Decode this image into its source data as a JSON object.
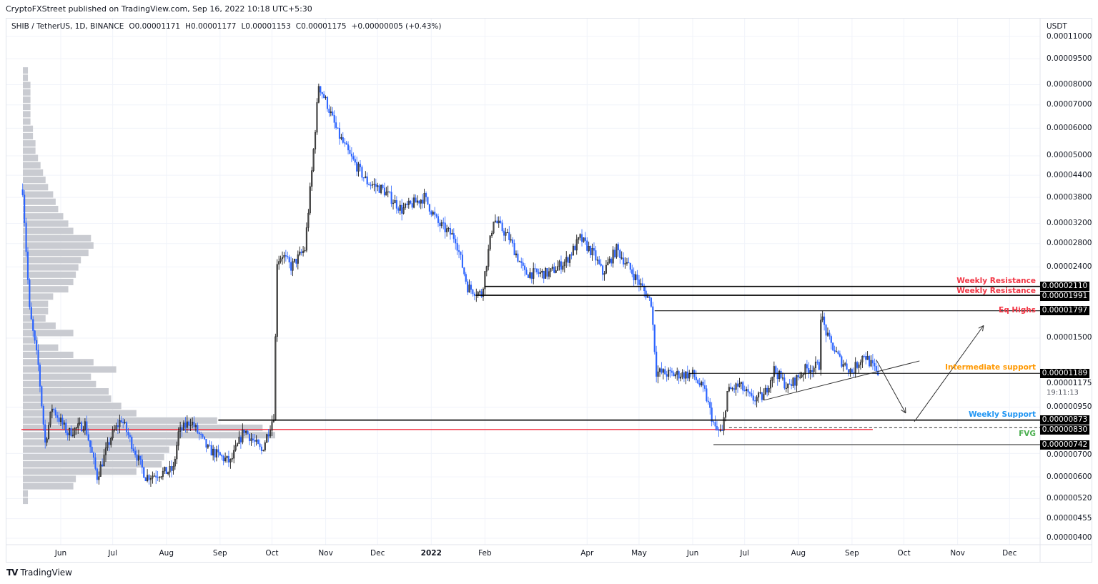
{
  "publisher_line": "CryptoFXStreet published on TradingView.com, Sep 16, 2022 10:18 UTC+5:30",
  "legend": {
    "symbol": "SHIB / TetherUS, 1D, BINANCE",
    "open": "O0.00001171",
    "high": "H0.00001177",
    "low": "L0.00001153",
    "close": "C0.00001175",
    "change": "+0.00000005 (+0.43%)"
  },
  "footer": {
    "logo_text": "TradingView",
    "logo_icon": "tradingview-logo-icon"
  },
  "colors": {
    "up": "#4a4a4a",
    "up_border": "#000000",
    "down": "#2962ff",
    "grid": "#f0f3fa",
    "profile": "#c9cbd1",
    "poc": "#f23645"
  },
  "chart_data": {
    "type": "candlestick",
    "yscale": "log",
    "ylim": [
      4e-06,
      0.00011
    ],
    "unit_label": "USDT",
    "grid": true,
    "y_ticks": [
      "0.00011000",
      "0.00009500",
      "0.00008000",
      "0.00007000",
      "0.00006000",
      "0.00005000",
      "0.00004400",
      "0.00003800",
      "0.00003200",
      "0.00002800",
      "0.00002400",
      "0.00001500",
      "0.00000950",
      "0.00000700",
      "0.00000600",
      "0.00000520",
      "0.00000455",
      "0.00000400"
    ],
    "x_ticks": [
      {
        "label": "Jun",
        "date": "2021-06-01"
      },
      {
        "label": "Jul",
        "date": "2021-07-01"
      },
      {
        "label": "Aug",
        "date": "2021-08-01"
      },
      {
        "label": "Sep",
        "date": "2021-09-01"
      },
      {
        "label": "Oct",
        "date": "2021-10-01"
      },
      {
        "label": "Nov",
        "date": "2021-11-01"
      },
      {
        "label": "Dec",
        "date": "2021-12-01"
      },
      {
        "label": "2022",
        "date": "2022-01-01",
        "year": true
      },
      {
        "label": "Feb",
        "date": "2022-02-01"
      },
      {
        "label": "Apr",
        "date": "2022-04-01"
      },
      {
        "label": "May",
        "date": "2022-05-01"
      },
      {
        "label": "Jun",
        "date": "2022-06-01"
      },
      {
        "label": "Jul",
        "date": "2022-07-01"
      },
      {
        "label": "Aug",
        "date": "2022-08-01"
      },
      {
        "label": "Sep",
        "date": "2022-09-01"
      },
      {
        "label": "Oct",
        "date": "2022-10-01"
      },
      {
        "label": "Nov",
        "date": "2022-11-01"
      },
      {
        "label": "Dec",
        "date": "2022-12-01"
      }
    ],
    "price_path": [
      [
        "2021-05-10",
        4e-05
      ],
      [
        "2021-05-14",
        1.8e-05
      ],
      [
        "2021-05-19",
        1.25e-05
      ],
      [
        "2021-05-23",
        7.5e-06
      ],
      [
        "2021-05-27",
        9.5e-06
      ],
      [
        "2021-06-05",
        8e-06
      ],
      [
        "2021-06-15",
        8.5e-06
      ],
      [
        "2021-06-22",
        6e-06
      ],
      [
        "2021-06-30",
        7.8e-06
      ],
      [
        "2021-07-06",
        8.8e-06
      ],
      [
        "2021-07-20",
        6e-06
      ],
      [
        "2021-08-01",
        6.2e-06
      ],
      [
        "2021-08-05",
        6.3e-06
      ],
      [
        "2021-08-08",
        8e-06
      ],
      [
        "2021-08-15",
        8.7e-06
      ],
      [
        "2021-08-25",
        7.2e-06
      ],
      [
        "2021-09-07",
        6.6e-06
      ],
      [
        "2021-09-15",
        8.2e-06
      ],
      [
        "2021-09-25",
        7.1e-06
      ],
      [
        "2021-10-02",
        9e-06
      ],
      [
        "2021-10-04",
        2.5e-05
      ],
      [
        "2021-10-07",
        2.6e-05
      ],
      [
        "2021-10-12",
        2.4e-05
      ],
      [
        "2021-10-20",
        2.7e-05
      ],
      [
        "2021-10-24",
        4.5e-05
      ],
      [
        "2021-10-28",
        8e-05
      ],
      [
        "2021-11-02",
        7e-05
      ],
      [
        "2021-11-08",
        5.8e-05
      ],
      [
        "2021-11-15",
        5e-05
      ],
      [
        "2021-11-25",
        4.2e-05
      ],
      [
        "2021-12-04",
        4e-05
      ],
      [
        "2021-12-15",
        3.5e-05
      ],
      [
        "2021-12-28",
        3.8e-05
      ],
      [
        "2022-01-05",
        3.2e-05
      ],
      [
        "2022-01-15",
        2.9e-05
      ],
      [
        "2022-01-22",
        2.1e-05
      ],
      [
        "2022-01-30",
        2e-05
      ],
      [
        "2022-02-06",
        3.3e-05
      ],
      [
        "2022-02-15",
        2.9e-05
      ],
      [
        "2022-02-24",
        2.3e-05
      ],
      [
        "2022-03-10",
        2.3e-05
      ],
      [
        "2022-03-20",
        2.5e-05
      ],
      [
        "2022-03-28",
        2.9e-05
      ],
      [
        "2022-04-05",
        2.6e-05
      ],
      [
        "2022-04-10",
        2.3e-05
      ],
      [
        "2022-04-18",
        2.7e-05
      ],
      [
        "2022-04-30",
        2.2e-05
      ],
      [
        "2022-05-08",
        1.9e-05
      ],
      [
        "2022-05-11",
        1.2e-05
      ],
      [
        "2022-05-20",
        1.18e-05
      ],
      [
        "2022-06-01",
        1.18e-05
      ],
      [
        "2022-06-08",
        1.05e-05
      ],
      [
        "2022-06-14",
        8.2e-06
      ],
      [
        "2022-06-18",
        8e-06
      ],
      [
        "2022-06-21",
        1.05e-05
      ],
      [
        "2022-06-28",
        1.1e-05
      ],
      [
        "2022-07-05",
        1e-05
      ],
      [
        "2022-07-12",
        1.02e-05
      ],
      [
        "2022-07-18",
        1.22e-05
      ],
      [
        "2022-07-26",
        1.08e-05
      ],
      [
        "2022-08-05",
        1.22e-05
      ],
      [
        "2022-08-13",
        1.25e-05
      ],
      [
        "2022-08-14",
        1.75e-05
      ],
      [
        "2022-08-18",
        1.5e-05
      ],
      [
        "2022-08-25",
        1.3e-05
      ],
      [
        "2022-09-01",
        1.2e-05
      ],
      [
        "2022-09-08",
        1.35e-05
      ],
      [
        "2022-09-16",
        1.175e-05
      ]
    ],
    "volume_profile": {
      "price_range": [
        5e-06,
        9e-05
      ],
      "relative_volumes": [
        0.02,
        0.02,
        0.03,
        0.03,
        0.03,
        0.03,
        0.03,
        0.03,
        0.04,
        0.04,
        0.05,
        0.05,
        0.06,
        0.07,
        0.08,
        0.09,
        0.1,
        0.12,
        0.13,
        0.14,
        0.16,
        0.18,
        0.2,
        0.27,
        0.28,
        0.26,
        0.23,
        0.22,
        0.21,
        0.2,
        0.18,
        0.12,
        0.1,
        0.1,
        0.09,
        0.13,
        0.2,
        0.06,
        0.14,
        0.2,
        0.28,
        0.37,
        0.27,
        0.29,
        0.34,
        0.35,
        0.39,
        0.45,
        0.77,
        0.95,
        1.0,
        0.62,
        0.58,
        0.56,
        0.55,
        0.45,
        0.21,
        0.2,
        0.02,
        0.02
      ],
      "poc_price": 8.2e-06,
      "poc_end_date": "2022-09-13"
    },
    "levels": [
      {
        "price": 2.11e-05,
        "tag": "0.00002110",
        "label": "Weekly Resistance",
        "label_color": "#f23645",
        "start": "2022-02-01",
        "style": "thick"
      },
      {
        "price": 1.991e-05,
        "tag": "0.00001991",
        "label": "Weekly Resistance",
        "label_color": "#f23645",
        "start": "2022-01-27",
        "style": "thick"
      },
      {
        "price": 1.797e-05,
        "tag": "0.00001797",
        "label": "Eq Highs",
        "label_color": "#f23645",
        "start": "2022-05-10",
        "style": "thin"
      },
      {
        "price": 1.189e-05,
        "tag": "0.00001189",
        "label": "Intermediate support",
        "label_color": "#ff9800",
        "start": "2022-05-30",
        "style": "thin"
      },
      {
        "price": 8.73e-06,
        "tag": "0.00000873",
        "label": "Weekly Support",
        "label_color": "#2196f3",
        "start": "2021-08-31",
        "style": "thick"
      },
      {
        "price": 8.3e-06,
        "tag": "0.00000830",
        "label": "FVG",
        "label_color": "#4caf50",
        "start": "2022-06-22",
        "style": "dashed"
      },
      {
        "price": 7.42e-06,
        "tag": "0.00000742",
        "label": "",
        "label_color": "#4caf50",
        "start": "2022-06-13",
        "style": "grey"
      }
    ],
    "trendline": [
      [
        "2022-07-12",
        9.95e-06
      ],
      [
        "2022-10-10",
        1.29e-05
      ]
    ],
    "arrows": [
      [
        [
          "2022-09-15",
          1.3e-05
        ],
        [
          "2022-10-02",
          9.14e-06
        ]
      ],
      [
        [
          "2022-10-07",
          8.64e-06
        ],
        [
          "2022-11-16",
          1.63e-05
        ]
      ]
    ],
    "last_price": "0.00001175",
    "countdown": "19:11:13"
  }
}
